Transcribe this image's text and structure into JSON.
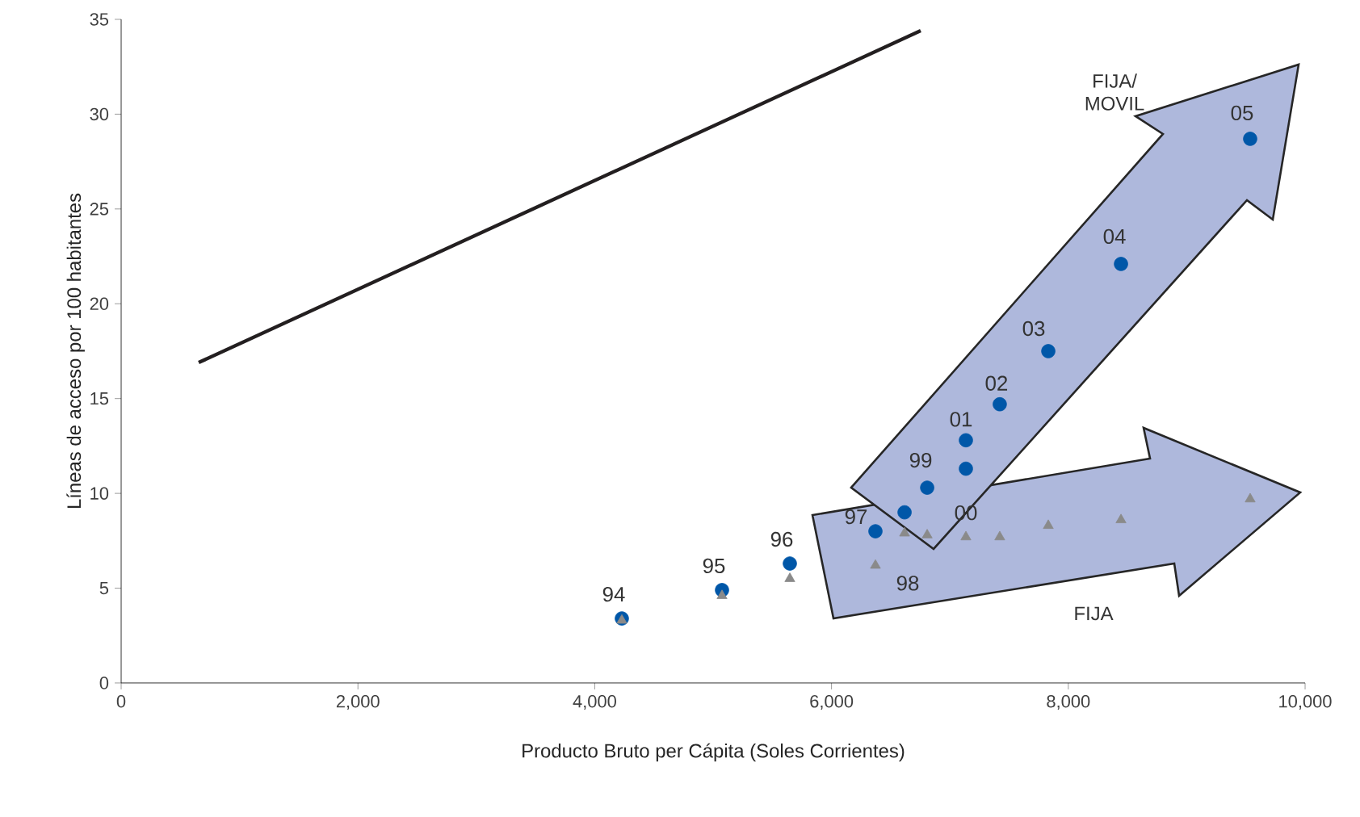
{
  "chart_data": {
    "type": "scatter",
    "xlabel": "Producto Bruto per Cápita (Soles Corrientes)",
    "ylabel": "Líneas de acceso por 100 habitantes",
    "xlim": [
      0,
      10000
    ],
    "ylim": [
      0,
      35
    ],
    "xticks": [
      {
        "value": 0,
        "label": "0"
      },
      {
        "value": 2000,
        "label": "2,000"
      },
      {
        "value": 4000,
        "label": "4,000"
      },
      {
        "value": 6000,
        "label": "6,000"
      },
      {
        "value": 8000,
        "label": "8,000"
      },
      {
        "value": 10000,
        "label": "10,000"
      }
    ],
    "yticks": [
      0,
      5,
      10,
      15,
      20,
      25,
      30,
      35
    ],
    "series": [
      {
        "type": "line",
        "color": "#231f20",
        "marker": "none",
        "x": [
          655,
          6753
        ],
        "values": [
          16.9,
          34.4
        ]
      },
      {
        "color": "#0057a8",
        "marker": "circle",
        "x": [
          4229,
          5075,
          5648,
          6371,
          6617,
          6808,
          7135,
          7135,
          7421,
          7831,
          8445,
          9536
        ],
        "values": [
          3.4,
          4.9,
          6.3,
          8.0,
          9.0,
          10.3,
          11.3,
          12.8,
          14.7,
          17.5,
          22.1,
          28.7
        ]
      },
      {
        "color": "#8a8a8a",
        "marker": "triangle",
        "x": [
          4229,
          5075,
          5648,
          6371,
          6617,
          6808,
          7135,
          7421,
          7831,
          8445,
          9536
        ],
        "values": [
          3.3,
          4.6,
          5.5,
          6.2,
          7.9,
          7.8,
          7.7,
          7.7,
          8.3,
          8.6,
          9.7
        ]
      }
    ],
    "annotations": [
      {
        "text": "94",
        "x": 4229,
        "y": 3.4
      },
      {
        "text": "95",
        "x": 5075,
        "y": 4.9
      },
      {
        "text": "96",
        "x": 5648,
        "y": 6.3
      },
      {
        "text": "97",
        "x": 6371,
        "y": 8.0
      },
      {
        "text": "98",
        "x": 6371,
        "y": 6.2
      },
      {
        "text": "99",
        "x": 6808,
        "y": 10.3
      },
      {
        "text": "00",
        "x": 7135,
        "y": 7.7
      },
      {
        "text": "01",
        "x": 7135,
        "y": 12.8
      },
      {
        "text": "02",
        "x": 7421,
        "y": 14.7
      },
      {
        "text": "03",
        "x": 7831,
        "y": 17.5
      },
      {
        "text": "04",
        "x": 8445,
        "y": 22.1
      },
      {
        "text": "05",
        "x": 9536,
        "y": 28.7
      },
      "FIJA/ MOVIL",
      "FIJA"
    ]
  }
}
